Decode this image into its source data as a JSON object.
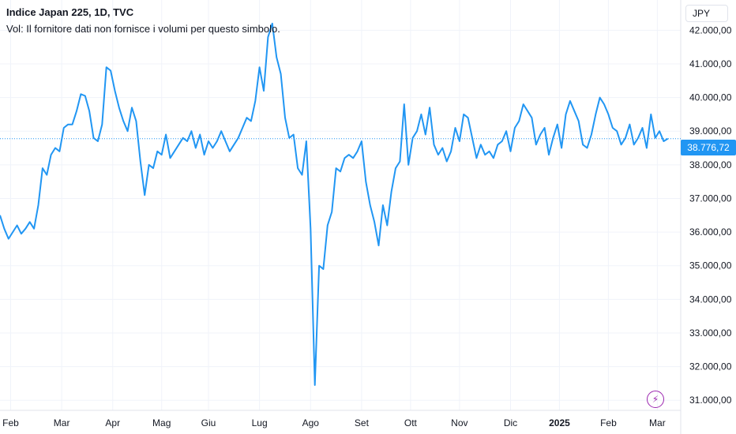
{
  "header": {
    "title": "Indice Japan 225, 1D, TVC",
    "volume_note": "Vol: Il fornitore dati non fornisce i volumi per questo simbolo."
  },
  "currency": "JPY",
  "last_price_label": "38.776,72",
  "colors": {
    "line": "#2196f3",
    "grid": "#f0f3fa",
    "axis_text": "#131722",
    "accent_icon": "#9c27b0"
  },
  "icons": {
    "bolt": "lightning-icon"
  },
  "chart_data": {
    "type": "line",
    "series": [
      {
        "values": [
          [
            0,
            36500
          ],
          [
            1,
            36100
          ],
          [
            2,
            35800
          ],
          [
            3,
            36000
          ],
          [
            4,
            36200
          ],
          [
            5,
            35950
          ],
          [
            6,
            36100
          ],
          [
            7,
            36300
          ],
          [
            8,
            36100
          ],
          [
            9,
            36800
          ],
          [
            10,
            37900
          ],
          [
            11,
            37700
          ],
          [
            12,
            38300
          ],
          [
            13,
            38500
          ],
          [
            14,
            38400
          ],
          [
            15,
            39100
          ],
          [
            16,
            39200
          ],
          [
            17,
            39200
          ],
          [
            18,
            39600
          ],
          [
            19,
            40100
          ],
          [
            20,
            40050
          ],
          [
            21,
            39600
          ],
          [
            22,
            38800
          ],
          [
            23,
            38700
          ],
          [
            24,
            39200
          ],
          [
            25,
            40900
          ],
          [
            26,
            40800
          ],
          [
            27,
            40200
          ],
          [
            28,
            39700
          ],
          [
            29,
            39300
          ],
          [
            30,
            39000
          ],
          [
            31,
            39700
          ],
          [
            32,
            39300
          ],
          [
            33,
            38100
          ],
          [
            34,
            37100
          ],
          [
            35,
            38000
          ],
          [
            36,
            37900
          ],
          [
            37,
            38400
          ],
          [
            38,
            38300
          ],
          [
            39,
            38900
          ],
          [
            40,
            38200
          ],
          [
            41,
            38400
          ],
          [
            42,
            38600
          ],
          [
            43,
            38800
          ],
          [
            44,
            38700
          ],
          [
            45,
            39000
          ],
          [
            46,
            38500
          ],
          [
            47,
            38900
          ],
          [
            48,
            38300
          ],
          [
            49,
            38700
          ],
          [
            50,
            38500
          ],
          [
            51,
            38700
          ],
          [
            52,
            39000
          ],
          [
            53,
            38700
          ],
          [
            54,
            38400
          ],
          [
            55,
            38600
          ],
          [
            56,
            38800
          ],
          [
            57,
            39100
          ],
          [
            58,
            39400
          ],
          [
            59,
            39300
          ],
          [
            60,
            39900
          ],
          [
            61,
            40900
          ],
          [
            62,
            40200
          ],
          [
            63,
            41800
          ],
          [
            64,
            42200
          ],
          [
            65,
            41200
          ],
          [
            66,
            40700
          ],
          [
            67,
            39400
          ],
          [
            68,
            38800
          ],
          [
            69,
            38900
          ],
          [
            70,
            37900
          ],
          [
            71,
            37700
          ],
          [
            72,
            38700
          ],
          [
            73,
            36100
          ],
          [
            74,
            31450
          ],
          [
            75,
            35000
          ],
          [
            76,
            34900
          ],
          [
            77,
            36200
          ],
          [
            78,
            36600
          ],
          [
            79,
            37900
          ],
          [
            80,
            37800
          ],
          [
            81,
            38200
          ],
          [
            82,
            38300
          ],
          [
            83,
            38200
          ],
          [
            84,
            38400
          ],
          [
            85,
            38700
          ],
          [
            86,
            37500
          ],
          [
            87,
            36800
          ],
          [
            88,
            36300
          ],
          [
            89,
            35600
          ],
          [
            90,
            36800
          ],
          [
            91,
            36200
          ],
          [
            92,
            37200
          ],
          [
            93,
            37900
          ],
          [
            94,
            38100
          ],
          [
            95,
            39800
          ],
          [
            96,
            38000
          ],
          [
            97,
            38800
          ],
          [
            98,
            39000
          ],
          [
            99,
            39500
          ],
          [
            100,
            38900
          ],
          [
            101,
            39700
          ],
          [
            102,
            38600
          ],
          [
            103,
            38300
          ],
          [
            104,
            38500
          ],
          [
            105,
            38100
          ],
          [
            106,
            38400
          ],
          [
            107,
            39100
          ],
          [
            108,
            38700
          ],
          [
            109,
            39500
          ],
          [
            110,
            39400
          ],
          [
            111,
            38800
          ],
          [
            112,
            38200
          ],
          [
            113,
            38600
          ],
          [
            114,
            38300
          ],
          [
            115,
            38400
          ],
          [
            116,
            38200
          ],
          [
            117,
            38600
          ],
          [
            118,
            38700
          ],
          [
            119,
            39000
          ],
          [
            120,
            38400
          ],
          [
            121,
            39100
          ],
          [
            122,
            39300
          ],
          [
            123,
            39800
          ],
          [
            124,
            39600
          ],
          [
            125,
            39400
          ],
          [
            126,
            38600
          ],
          [
            127,
            38900
          ],
          [
            128,
            39100
          ],
          [
            129,
            38300
          ],
          [
            130,
            38800
          ],
          [
            131,
            39200
          ],
          [
            132,
            38500
          ],
          [
            133,
            39500
          ],
          [
            134,
            39900
          ],
          [
            135,
            39600
          ],
          [
            136,
            39300
          ],
          [
            137,
            38600
          ],
          [
            138,
            38500
          ],
          [
            139,
            38900
          ],
          [
            140,
            39500
          ],
          [
            141,
            40000
          ],
          [
            142,
            39800
          ],
          [
            143,
            39500
          ],
          [
            144,
            39100
          ],
          [
            145,
            39000
          ],
          [
            146,
            38600
          ],
          [
            147,
            38800
          ],
          [
            148,
            39200
          ],
          [
            149,
            38600
          ],
          [
            150,
            38800
          ],
          [
            151,
            39100
          ],
          [
            152,
            38500
          ],
          [
            153,
            39500
          ],
          [
            154,
            38800
          ],
          [
            155,
            39000
          ],
          [
            156,
            38700
          ],
          [
            157,
            38776.72
          ]
        ]
      }
    ],
    "x_labels": [
      "Feb",
      "Mar",
      "Apr",
      "Mag",
      "Giu",
      "Lug",
      "Ago",
      "Set",
      "Ott",
      "Nov",
      "Dic",
      "2025",
      "Feb",
      "Mar"
    ],
    "x_label_positions": [
      2.5,
      14.5,
      26.5,
      38,
      49,
      61,
      73,
      85,
      96.5,
      108,
      120,
      131.5,
      143,
      154.5
    ],
    "y_tick_values": [
      31000,
      32000,
      33000,
      34000,
      35000,
      36000,
      37000,
      38000,
      39000,
      40000,
      41000,
      42000
    ],
    "y_tick_labels": [
      "31.000,00",
      "32.000,00",
      "33.000,00",
      "34.000,00",
      "35.000,00",
      "36.000,00",
      "37.000,00",
      "38.000,00",
      "39.000,00",
      "40.000,00",
      "41.000,00",
      "42.000,00"
    ],
    "y_range": [
      30700,
      42900
    ],
    "last_value": 38776.72,
    "x_range": [
      0,
      160
    ],
    "grid": true
  }
}
